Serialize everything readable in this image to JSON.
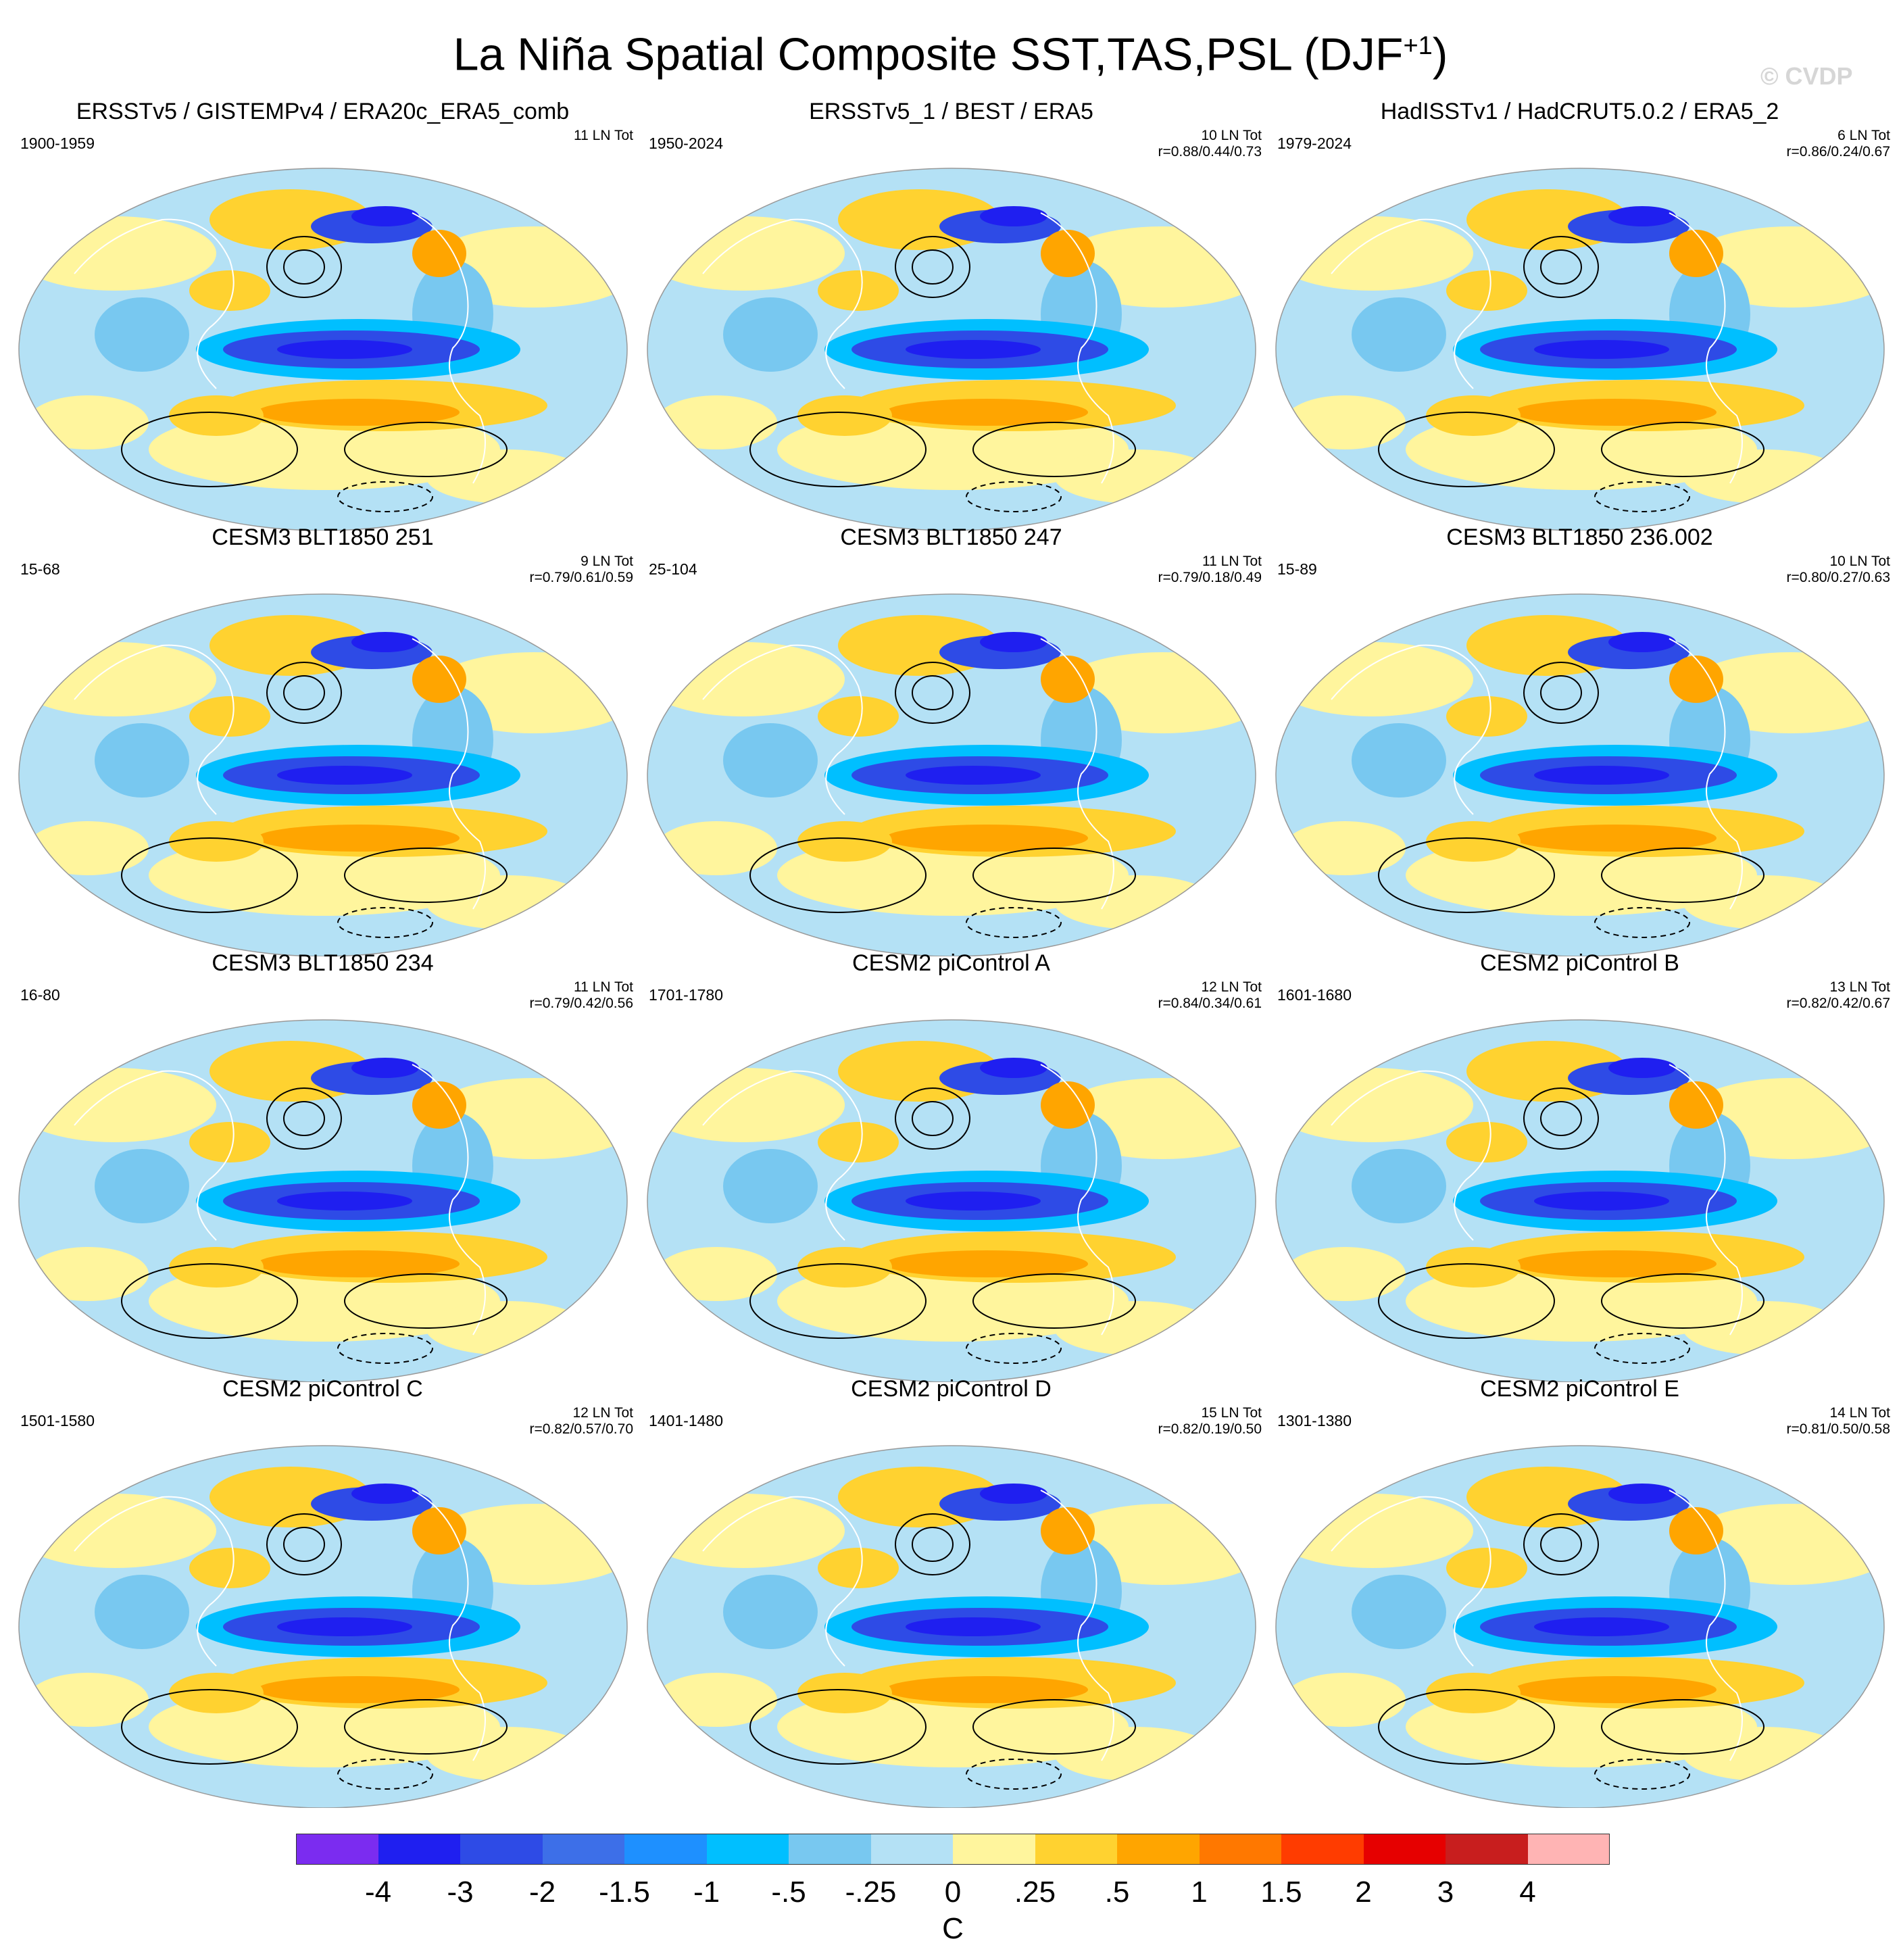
{
  "title": "La Niña Spatial Composite SST,TAS,PSL (DJF",
  "title_superscript": "+1",
  "title_close": ")",
  "watermark": "© CVDP",
  "panels": [
    {
      "title": "ERSSTv5 / GISTEMPv4 / ERA20c_ERA5_comb",
      "years": "1900-1959",
      "count": "11 LN Tot",
      "stat": ""
    },
    {
      "title": "ERSSTv5_1 / BEST / ERA5",
      "years": "1950-2024",
      "count": "10 LN Tot",
      "stat": "r=0.88/0.44/0.73"
    },
    {
      "title": "HadISSTv1 / HadCRUT5.0.2 / ERA5_2",
      "years": "1979-2024",
      "count": "6 LN Tot",
      "stat": "r=0.86/0.24/0.67"
    },
    {
      "title": "CESM3 BLT1850 251",
      "years": "15-68",
      "count": "9 LN Tot",
      "stat": "r=0.79/0.61/0.59"
    },
    {
      "title": "CESM3 BLT1850 247",
      "years": "25-104",
      "count": "11 LN Tot",
      "stat": "r=0.79/0.18/0.49"
    },
    {
      "title": "CESM3 BLT1850 236.002",
      "years": "15-89",
      "count": "10 LN Tot",
      "stat": "r=0.80/0.27/0.63"
    },
    {
      "title": "CESM3 BLT1850 234",
      "years": "16-80",
      "count": "11 LN Tot",
      "stat": "r=0.79/0.42/0.56"
    },
    {
      "title": "CESM2 piControl A",
      "years": "1701-1780",
      "count": "12 LN Tot",
      "stat": "r=0.84/0.34/0.61"
    },
    {
      "title": "CESM2 piControl B",
      "years": "1601-1680",
      "count": "13 LN Tot",
      "stat": "r=0.82/0.42/0.67"
    },
    {
      "title": "CESM2 piControl C",
      "years": "1501-1580",
      "count": "12 LN Tot",
      "stat": "r=0.82/0.57/0.70"
    },
    {
      "title": "CESM2 piControl D",
      "years": "1401-1480",
      "count": "15 LN Tot",
      "stat": "r=0.82/0.19/0.50"
    },
    {
      "title": "CESM2 piControl E",
      "years": "1301-1380",
      "count": "14 LN Tot",
      "stat": "r=0.81/0.50/0.58"
    }
  ],
  "colorbar": {
    "colors": [
      "#7b2cf0",
      "#1f1ff0",
      "#2e4be6",
      "#3d6fe8",
      "#1e90ff",
      "#00bfff",
      "#78c8f0",
      "#b4e1f5",
      "#fff59d",
      "#ffd230",
      "#ffa500",
      "#ff7800",
      "#ff3c00",
      "#e60000",
      "#c81e1e",
      "#ffb4b4"
    ],
    "labels": [
      "-4",
      "-3",
      "-2",
      "-1.5",
      "-1",
      "-.5",
      "-.25",
      "0",
      ".25",
      ".5",
      "1",
      "1.5",
      "2",
      "3",
      "4"
    ],
    "units": "C"
  },
  "map_colors": {
    "neutral": "#b4e1f5",
    "warm_weak": "#fff59d",
    "warm_mid": "#ffd230",
    "warm_strong": "#ffa500",
    "warm_hot": "#ff3c00",
    "cold_weak": "#78c8f0",
    "cold_mid": "#00bfff",
    "cold_strong": "#2e4be6",
    "cold_deep": "#1f1ff0",
    "coast": "#ffffff",
    "contour": "#000000"
  }
}
